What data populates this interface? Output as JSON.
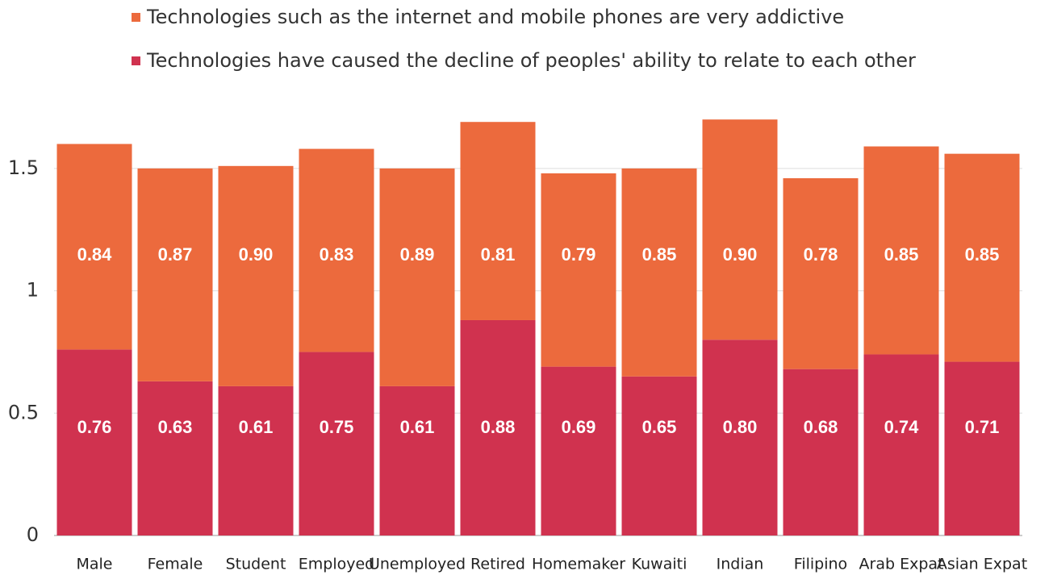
{
  "chart_data": {
    "type": "stacked_bar",
    "categories": [
      "Male",
      "Female",
      "Student",
      "Employed",
      "Unemployed",
      "Retired",
      "Homemaker",
      "Kuwaiti",
      "Indian",
      "Filipino",
      "Arab Expat",
      "Asian Expat"
    ],
    "series": [
      {
        "name": "Technologies have caused the decline of peoples' ability to relate to each other",
        "color": "#d0324f",
        "values": [
          0.76,
          0.63,
          0.61,
          0.75,
          0.61,
          0.88,
          0.69,
          0.65,
          0.8,
          0.68,
          0.74,
          0.71
        ],
        "value_labels": [
          "0.76",
          "0.63",
          "0.61",
          "0.75",
          "0.61",
          "0.88",
          "0.69",
          "0.65",
          "0.80",
          "0.68",
          "0.74",
          "0.71"
        ]
      },
      {
        "name": "Technologies such as the internet and mobile phones are very addictive",
        "color": "#ec6a3d",
        "values": [
          0.84,
          0.87,
          0.9,
          0.83,
          0.89,
          0.81,
          0.79,
          0.85,
          0.9,
          0.78,
          0.85,
          0.85
        ],
        "value_labels": [
          "0.84",
          "0.87",
          "0.90",
          "0.83",
          "0.89",
          "0.81",
          "0.79",
          "0.85",
          "0.90",
          "0.78",
          "0.85",
          "0.85"
        ]
      }
    ],
    "ylim": [
      0,
      1.75
    ],
    "yticks": [
      0,
      0.5,
      1,
      1.5
    ],
    "grid": true,
    "legend": "top"
  }
}
